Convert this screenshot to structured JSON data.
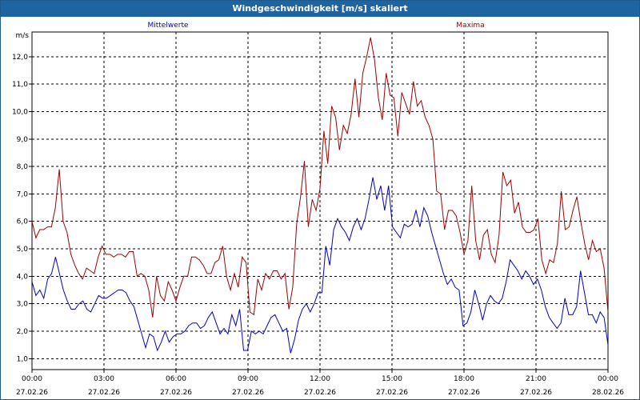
{
  "title": "Windgeschwindigkeit [m/s] skaliert",
  "chart_data": {
    "type": "line",
    "title": "Windgeschwindigkeit [m/s] skaliert",
    "ylabel": "m/s",
    "ylim": [
      0.6,
      12.9
    ],
    "xlim": [
      0,
      24
    ],
    "grid": true,
    "y_ticks": [
      "1,0",
      "2,0",
      "3,0",
      "4,0",
      "5,0",
      "6,0",
      "7,0",
      "8,0",
      "9,0",
      "10,0",
      "11,0",
      "12,0"
    ],
    "x_ticks": [
      {
        "time": "00:00",
        "date": "27.02.26"
      },
      {
        "time": "03:00",
        "date": "27.02.26"
      },
      {
        "time": "06:00",
        "date": "27.02.26"
      },
      {
        "time": "09:00",
        "date": "27.02.26"
      },
      {
        "time": "12:00",
        "date": "27.02.26"
      },
      {
        "time": "15:00",
        "date": "27.02.26"
      },
      {
        "time": "18:00",
        "date": "27.02.26"
      },
      {
        "time": "21:00",
        "date": "27.02.26"
      },
      {
        "time": "00:00",
        "date": "28.02.26"
      }
    ],
    "series": [
      {
        "name": "Mittelwerte",
        "color": "#0000cc",
        "values": [
          3.8,
          3.3,
          3.5,
          3.2,
          3.9,
          4.1,
          4.7,
          4.1,
          3.5,
          3.1,
          2.8,
          2.8,
          3.0,
          3.1,
          2.8,
          2.7,
          3.0,
          3.3,
          3.2,
          3.2,
          3.3,
          3.4,
          3.5,
          3.5,
          3.4,
          3.1,
          2.9,
          2.4,
          1.9,
          1.4,
          1.9,
          1.8,
          1.3,
          1.6,
          2.0,
          1.6,
          1.8,
          1.9,
          1.9,
          2.0,
          2.2,
          2.3,
          2.3,
          2.1,
          2.2,
          2.5,
          2.7,
          2.3,
          1.9,
          2.1,
          1.9,
          2.6,
          2.2,
          2.8,
          1.3,
          1.3,
          2.0,
          1.9,
          2.0,
          1.9,
          2.2,
          2.5,
          2.6,
          2.3,
          2.0,
          2.1,
          1.2,
          1.7,
          2.4,
          2.8,
          3.0,
          2.7,
          3.0,
          3.4,
          3.4,
          5.1,
          4.4,
          5.7,
          6.1,
          5.8,
          5.6,
          5.3,
          5.8,
          6.1,
          5.7,
          6.1,
          6.8,
          7.6,
          6.8,
          7.3,
          6.4,
          7.3,
          5.8,
          5.6,
          5.4,
          5.9,
          5.8,
          5.9,
          6.4,
          5.8,
          6.5,
          6.2,
          5.6,
          5.1,
          4.6,
          4.1,
          3.7,
          3.9,
          3.6,
          3.5,
          2.2,
          2.3,
          2.7,
          3.5,
          3.0,
          2.4,
          3.0,
          3.3,
          3.1,
          3.0,
          3.2,
          3.8,
          4.6,
          4.4,
          4.2,
          3.9,
          4.2,
          4.0,
          3.7,
          3.9,
          3.5,
          2.9,
          2.5,
          2.3,
          2.1,
          2.3,
          3.2,
          2.6,
          2.6,
          2.9,
          4.2,
          3.4,
          2.6,
          2.6,
          2.3,
          2.7,
          2.5,
          1.5
        ]
      },
      {
        "name": "Maxima",
        "color": "#a00000",
        "values": [
          6.0,
          5.4,
          5.7,
          5.7,
          5.8,
          5.8,
          6.5,
          7.9,
          6.0,
          5.6,
          4.8,
          4.4,
          4.1,
          3.9,
          4.3,
          4.2,
          4.1,
          4.7,
          5.1,
          4.8,
          4.8,
          4.7,
          4.8,
          4.8,
          4.7,
          4.9,
          4.9,
          4.0,
          4.1,
          4.0,
          3.5,
          2.5,
          4.0,
          3.3,
          3.1,
          3.8,
          3.5,
          3.1,
          3.6,
          4.0,
          4.0,
          4.7,
          4.7,
          4.6,
          4.4,
          4.1,
          4.1,
          4.5,
          4.6,
          5.1,
          4.0,
          3.5,
          4.1,
          3.6,
          4.7,
          4.5,
          2.7,
          2.6,
          3.9,
          3.5,
          4.1,
          3.9,
          4.2,
          4.2,
          3.9,
          4.1,
          2.8,
          3.6,
          5.9,
          6.9,
          8.2,
          5.8,
          6.8,
          6.4,
          7.2,
          9.3,
          8.1,
          10.2,
          9.8,
          8.6,
          9.5,
          9.2,
          9.9,
          11.2,
          9.8,
          11.4,
          12.0,
          12.7,
          11.9,
          10.5,
          9.7,
          11.4,
          10.6,
          10.5,
          9.1,
          10.7,
          10.3,
          9.9,
          11.1,
          10.2,
          10.4,
          9.8,
          9.5,
          9.0,
          7.1,
          7.0,
          5.7,
          6.4,
          6.4,
          6.2,
          5.6,
          4.8,
          5.3,
          7.3,
          5.3,
          4.6,
          5.5,
          5.7,
          4.8,
          4.5,
          5.5,
          7.8,
          7.3,
          7.5,
          6.3,
          6.7,
          5.8,
          5.6,
          5.6,
          5.7,
          6.1,
          4.6,
          4.1,
          4.6,
          4.5,
          5.2,
          7.1,
          5.7,
          5.8,
          6.4,
          6.9,
          6.0,
          5.2,
          4.6,
          5.3,
          4.9,
          5.0,
          4.3,
          2.7
        ]
      }
    ]
  }
}
